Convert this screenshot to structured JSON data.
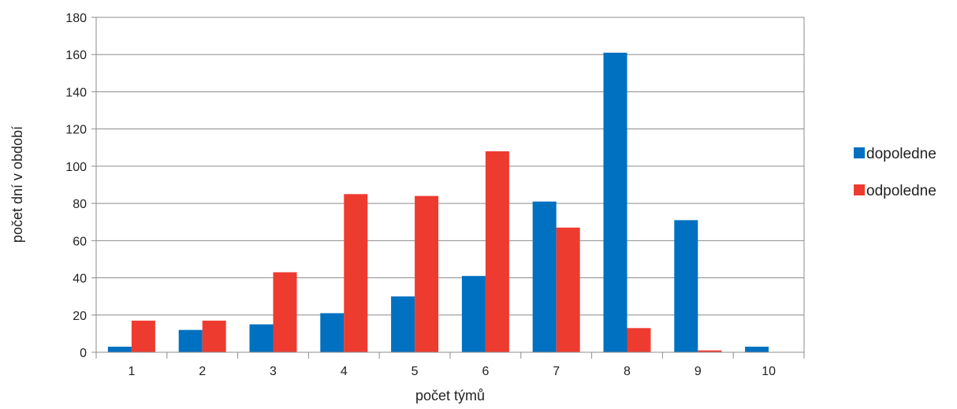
{
  "chart_data": {
    "type": "bar",
    "title": "",
    "xlabel": "počet týmů",
    "ylabel": "počet dní v období",
    "categories": [
      "1",
      "2",
      "3",
      "4",
      "5",
      "6",
      "7",
      "8",
      "9",
      "10"
    ],
    "series": [
      {
        "name": "dopoledne",
        "color": "#0070C0",
        "values": [
          3,
          12,
          15,
          21,
          30,
          41,
          81,
          161,
          71,
          3
        ]
      },
      {
        "name": "odpoledne",
        "color": "#EE3B2F",
        "values": [
          17,
          17,
          43,
          85,
          84,
          108,
          67,
          13,
          1,
          0
        ]
      }
    ],
    "ylim": [
      0,
      180
    ],
    "yticks": [
      0,
      20,
      40,
      60,
      80,
      100,
      120,
      140,
      160,
      180
    ],
    "grid": true,
    "legend": "right"
  }
}
